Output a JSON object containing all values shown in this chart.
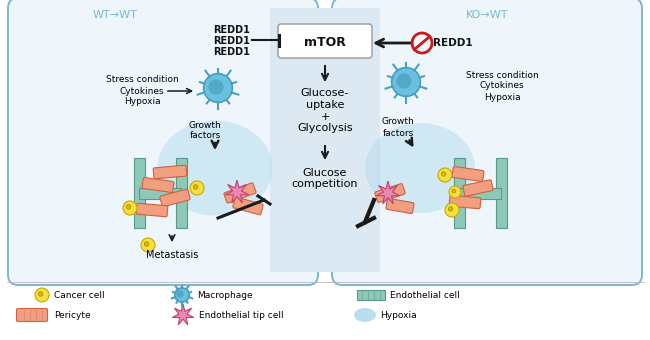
{
  "bg_color": "#ffffff",
  "box_bg": "#eef6fb",
  "box_border_color": "#7ab8d4",
  "wt_label": "WT→WT",
  "ko_label": "KO→WT",
  "mtor_label": "mTOR",
  "redd1_lines": [
    "REDD1",
    "REDD1",
    "REDD1"
  ],
  "center_panel_color": "#dce8f2",
  "macrophage_color": "#6bbfdf",
  "macrophage_inner": "#4a9fc0",
  "cancer_cell_color": "#f5e040",
  "cancer_cell_edge": "#c8a800",
  "hypoxia_glow_color": "#b8dcf0",
  "endothelial_color": "#8ec8b8",
  "endothelial_edge": "#5a9888",
  "pericyte_color": "#f0a080",
  "pericyte_edge": "#d06040",
  "tip_cell_color": "#e888b0",
  "tip_cell_edge": "#c04070",
  "arrow_color": "#1a1a1a",
  "redd1_cross_color": "#cc1818"
}
